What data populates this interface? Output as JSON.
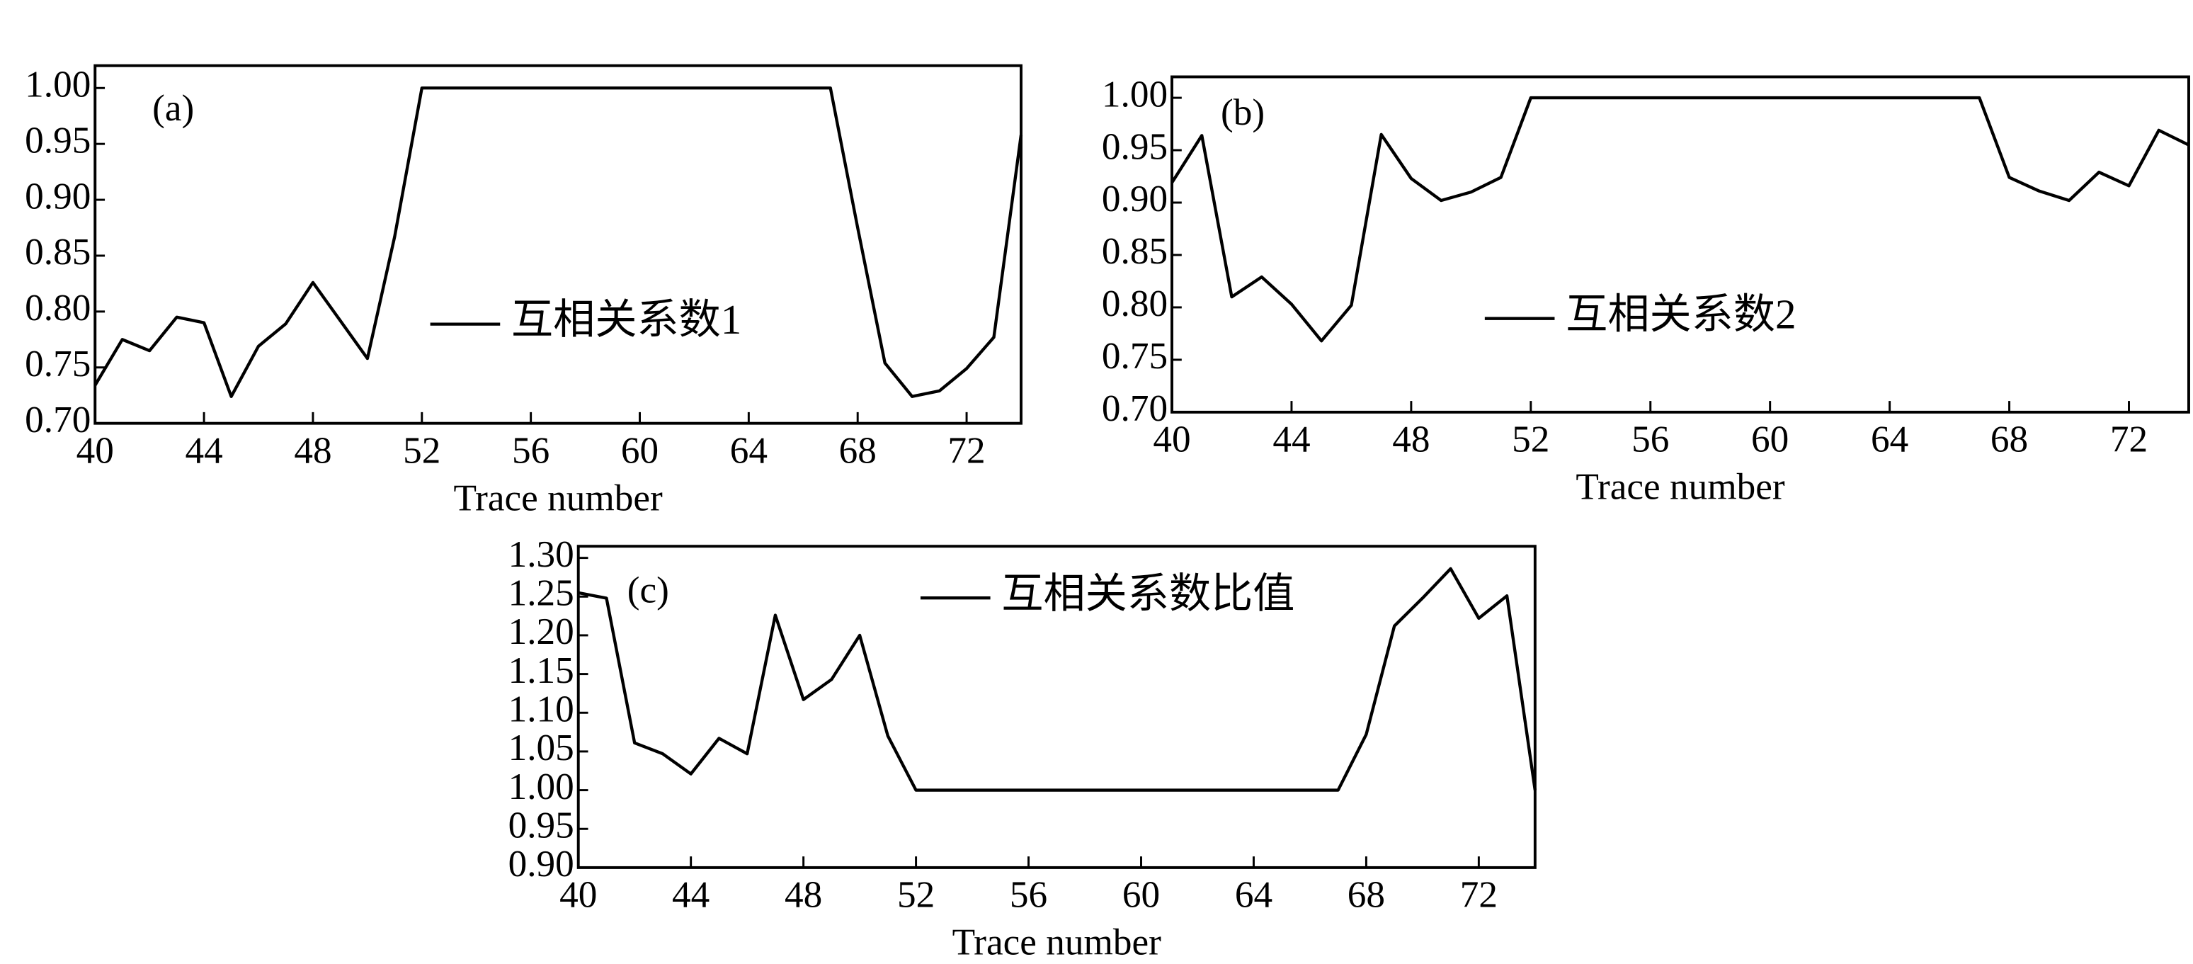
{
  "chart_data": [
    {
      "type": "line",
      "panel_label": "(a)",
      "x_label": "Trace number",
      "x": [
        40,
        41,
        42,
        43,
        44,
        45,
        46,
        47,
        48,
        49,
        50,
        51,
        52,
        53,
        54,
        55,
        56,
        57,
        58,
        59,
        60,
        61,
        62,
        63,
        64,
        65,
        66,
        67,
        68,
        69,
        70,
        71,
        72,
        73,
        74
      ],
      "series": [
        {
          "name": "互相关系数1",
          "color": "#000000",
          "values": [
            0.734,
            0.775,
            0.765,
            0.795,
            0.79,
            0.724,
            0.769,
            0.789,
            0.826,
            0.792,
            0.758,
            0.867,
            1.0,
            1.0,
            1.0,
            1.0,
            1.0,
            1.0,
            1.0,
            1.0,
            1.0,
            1.0,
            1.0,
            1.0,
            1.0,
            1.0,
            1.0,
            1.0,
            0.875,
            0.754,
            0.724,
            0.729,
            0.749,
            0.777,
            0.958
          ]
        }
      ],
      "xlim": [
        40,
        74
      ],
      "ylim": [
        0.7,
        1.02
      ],
      "xticks": [
        40,
        44,
        48,
        52,
        56,
        60,
        64,
        68,
        72
      ],
      "yticks": [
        {
          "value": 0.7,
          "label": "0.70"
        },
        {
          "value": 0.75,
          "label": "0.75"
        },
        {
          "value": 0.8,
          "label": "0.80"
        },
        {
          "value": 0.85,
          "label": "0.85"
        },
        {
          "value": 0.9,
          "label": "0.90"
        },
        {
          "value": 0.95,
          "label": "0.95"
        },
        {
          "value": 1.0,
          "label": "1.00"
        }
      ]
    },
    {
      "type": "line",
      "panel_label": "(b)",
      "x_label": "Trace number",
      "x": [
        40,
        41,
        42,
        43,
        44,
        45,
        46,
        47,
        48,
        49,
        50,
        51,
        52,
        53,
        54,
        55,
        56,
        57,
        58,
        59,
        60,
        61,
        62,
        63,
        64,
        65,
        66,
        67,
        68,
        69,
        70,
        71,
        72,
        73,
        74
      ],
      "series": [
        {
          "name": "互相关系数2",
          "color": "#000000",
          "values": [
            0.919,
            0.964,
            0.81,
            0.829,
            0.803,
            0.768,
            0.802,
            0.965,
            0.923,
            0.902,
            0.91,
            0.924,
            1.0,
            1.0,
            1.0,
            1.0,
            1.0,
            1.0,
            1.0,
            1.0,
            1.0,
            1.0,
            1.0,
            1.0,
            1.0,
            1.0,
            1.0,
            1.0,
            0.924,
            0.911,
            0.902,
            0.929,
            0.916,
            0.969,
            0.955
          ]
        }
      ],
      "xlim": [
        40,
        74
      ],
      "ylim": [
        0.7,
        1.02
      ],
      "xticks": [
        40,
        44,
        48,
        52,
        56,
        60,
        64,
        68,
        72
      ],
      "yticks": [
        {
          "value": 0.7,
          "label": "0.70"
        },
        {
          "value": 0.75,
          "label": "0.75"
        },
        {
          "value": 0.8,
          "label": "0.80"
        },
        {
          "value": 0.85,
          "label": "0.85"
        },
        {
          "value": 0.9,
          "label": "0.90"
        },
        {
          "value": 0.95,
          "label": "0.95"
        },
        {
          "value": 1.0,
          "label": "1.00"
        }
      ]
    },
    {
      "type": "line",
      "panel_label": "(c)",
      "x_label": "Trace number",
      "x": [
        40,
        41,
        42,
        43,
        44,
        45,
        46,
        47,
        48,
        49,
        50,
        51,
        52,
        53,
        54,
        55,
        56,
        57,
        58,
        59,
        60,
        61,
        62,
        63,
        64,
        65,
        66,
        67,
        68,
        69,
        70,
        71,
        72,
        73,
        74
      ],
      "series": [
        {
          "name": "互相关系数比值",
          "color": "#000000",
          "values": [
            1.255,
            1.248,
            1.061,
            1.047,
            1.021,
            1.067,
            1.047,
            1.226,
            1.117,
            1.143,
            1.2,
            1.07,
            1.0,
            1.0,
            1.0,
            1.0,
            1.0,
            1.0,
            1.0,
            1.0,
            1.0,
            1.0,
            1.0,
            1.0,
            1.0,
            1.0,
            1.0,
            1.0,
            1.072,
            1.212,
            1.248,
            1.286,
            1.222,
            1.251,
            1.0
          ]
        }
      ],
      "xlim": [
        40,
        74
      ],
      "ylim": [
        0.9,
        1.315
      ],
      "xticks": [
        40,
        44,
        48,
        52,
        56,
        60,
        64,
        68,
        72
      ],
      "yticks": [
        {
          "value": 0.9,
          "label": "0.90"
        },
        {
          "value": 0.95,
          "label": "0.95"
        },
        {
          "value": 1.0,
          "label": "1.00"
        },
        {
          "value": 1.05,
          "label": "1.05"
        },
        {
          "value": 1.1,
          "label": "1.10"
        },
        {
          "value": 1.15,
          "label": "1.15"
        },
        {
          "value": 1.2,
          "label": "1.20"
        },
        {
          "value": 1.25,
          "label": "1.25"
        },
        {
          "value": 1.3,
          "label": "1.30"
        }
      ]
    }
  ]
}
